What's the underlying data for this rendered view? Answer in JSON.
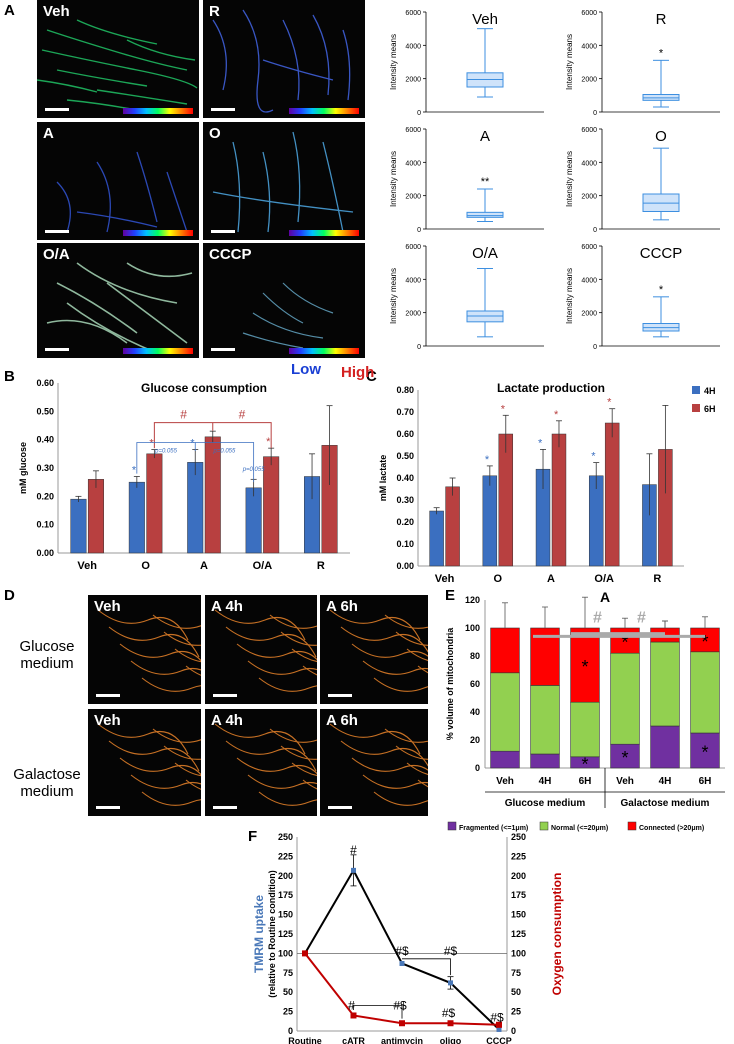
{
  "panels": {
    "A": "A",
    "B": "B",
    "C": "C",
    "D": "D",
    "E": "E",
    "F": "F"
  },
  "panelA": {
    "images": [
      "Veh",
      "R",
      "A",
      "O",
      "O/A",
      "CCCP"
    ],
    "scale_low": "Low",
    "scale_high": "High",
    "colors": {
      "low": "#1a3fd4",
      "high": "#d42020"
    }
  },
  "panelD": {
    "rows": [
      "Glucose medium",
      "Galactose medium"
    ],
    "images": [
      [
        "Veh",
        "A 4h",
        "A 6h"
      ],
      [
        "Veh",
        "A 4h",
        "A 6h"
      ]
    ]
  },
  "chart_data": [
    {
      "id": "A-box",
      "type": "box",
      "ylabel": "Intensity means",
      "yticks": [
        "0",
        "2000",
        "4000",
        "6000"
      ],
      "ylim": [
        0,
        6000
      ],
      "color": "#3d8fe0",
      "plots": [
        {
          "name": "Veh",
          "min": 900,
          "q1": 1500,
          "median": 1950,
          "q3": 2350,
          "max": 5000,
          "sig": ""
        },
        {
          "name": "R",
          "min": 300,
          "q1": 700,
          "median": 850,
          "q3": 1050,
          "max": 3100,
          "sig": "*"
        },
        {
          "name": "A",
          "min": 450,
          "q1": 700,
          "median": 800,
          "q3": 1000,
          "max": 2400,
          "sig": "**"
        },
        {
          "name": "O",
          "min": 550,
          "q1": 1050,
          "median": 1550,
          "q3": 2100,
          "max": 4850,
          "sig": ""
        },
        {
          "name": "O/A",
          "min": 550,
          "q1": 1450,
          "median": 1800,
          "q3": 2100,
          "max": 4650,
          "sig": ""
        },
        {
          "name": "CCCP",
          "min": 550,
          "q1": 900,
          "median": 1100,
          "q3": 1350,
          "max": 2950,
          "sig": "*"
        }
      ]
    },
    {
      "id": "B",
      "type": "bar",
      "title": "Glucose consumption",
      "ylabel": "mM glucose",
      "yticks": [
        "0.00",
        "0.10",
        "0.20",
        "0.30",
        "0.40",
        "0.50",
        "0.60"
      ],
      "ylim": [
        0,
        0.6
      ],
      "categories": [
        "Veh",
        "O",
        "A",
        "O/A",
        "R"
      ],
      "series": [
        {
          "color": "#3b6fc0",
          "values": [
            0.19,
            0.25,
            0.32,
            0.23,
            0.27
          ],
          "errors": [
            0.01,
            0.02,
            0.045,
            0.03,
            0.08
          ],
          "sig": [
            "",
            "*",
            "*",
            "",
            ""
          ]
        },
        {
          "color": "#b84040",
          "values": [
            0.26,
            0.35,
            0.41,
            0.34,
            0.38
          ],
          "errors": [
            0.03,
            0.015,
            0.02,
            0.03,
            0.14
          ],
          "sig": [
            "",
            "*",
            "",
            "*",
            ""
          ]
        }
      ],
      "annotations": {
        "hash": "#",
        "p1": "p=0.055",
        "p2": "p=0.055",
        "p3": "p=0.055"
      }
    },
    {
      "id": "C",
      "type": "bar",
      "title": "Lactate production",
      "ylabel": "mM lactate",
      "yticks": [
        "0.00",
        "0.10",
        "0.20",
        "0.30",
        "0.40",
        "0.50",
        "0.60",
        "0.70",
        "0.80"
      ],
      "ylim": [
        0,
        0.8
      ],
      "categories": [
        "Veh",
        "O",
        "A",
        "O/A",
        "R"
      ],
      "series": [
        {
          "name": "4H",
          "color": "#3b6fc0",
          "values": [
            0.25,
            0.41,
            0.44,
            0.41,
            0.37
          ],
          "errors": [
            0.015,
            0.045,
            0.09,
            0.06,
            0.14
          ],
          "sig": [
            "",
            "*",
            "*",
            "*",
            ""
          ]
        },
        {
          "name": "6H",
          "color": "#b84040",
          "values": [
            0.36,
            0.6,
            0.6,
            0.65,
            0.53
          ],
          "errors": [
            0.04,
            0.085,
            0.06,
            0.065,
            0.2
          ],
          "sig": [
            "",
            "*",
            "*",
            "*",
            ""
          ]
        }
      ]
    },
    {
      "id": "E",
      "type": "stacked-bar",
      "title": "A",
      "ylabel": "% volume of mitochondria",
      "yticks": [
        "0",
        "20",
        "40",
        "60",
        "80",
        "100",
        "120"
      ],
      "ylim": [
        0,
        120
      ],
      "categories": [
        "Veh",
        "4H",
        "6H",
        "Veh",
        "4H",
        "6H"
      ],
      "groups": [
        "Glucose medium",
        "Galactose medium"
      ],
      "series": [
        {
          "name": "Fragmented (<=1μm)",
          "color": "#7030a0",
          "values": [
            12,
            10,
            8,
            17,
            30,
            25
          ],
          "errors": [
            5,
            4,
            4,
            5,
            6,
            8
          ],
          "sig": [
            "",
            "",
            "*",
            "*",
            "",
            "*"
          ]
        },
        {
          "name": "Normal (<=20μm)",
          "color": "#92d050",
          "values": [
            56,
            49,
            39,
            65,
            60,
            58
          ],
          "errors": [
            14,
            14,
            20,
            14,
            15,
            15
          ],
          "sig": [
            "",
            "",
            "",
            "",
            "",
            ""
          ]
        },
        {
          "name": "Connected (>20μm)",
          "color": "#ff0000",
          "values": [
            32,
            41,
            53,
            18,
            10,
            17
          ],
          "errors": [
            18,
            15,
            22,
            7,
            5,
            8
          ],
          "sig": [
            "",
            "",
            "*",
            "*",
            "",
            "*"
          ]
        }
      ],
      "hash": "#"
    },
    {
      "id": "F",
      "type": "line",
      "ylabel_left": "TMRM uptake",
      "ylabel_left2": "(relative to Routine condition)",
      "ylabel_right": "Oxygen consumption",
      "yticks": [
        "0",
        "25",
        "50",
        "75",
        "100",
        "125",
        "150",
        "175",
        "200",
        "225",
        "250"
      ],
      "ylim": [
        0,
        250
      ],
      "categories": [
        "Routine",
        "cATR",
        "antimycin",
        "oligo",
        "CCCP"
      ],
      "series": [
        {
          "name": "TMRM uptake",
          "color": "#000000",
          "marker": "#4a78b8",
          "values": [
            100,
            207,
            87,
            62,
            2
          ],
          "errors": [
            0,
            20,
            0,
            8,
            0
          ]
        },
        {
          "name": "Oxygen consumption",
          "color": "#c00000",
          "values": [
            100,
            20,
            10,
            10,
            8
          ],
          "errors": [
            0,
            0,
            0,
            0,
            0
          ]
        }
      ],
      "annotations": [
        "#",
        "#$",
        "#$",
        "#",
        "#$",
        "#$",
        "#$"
      ]
    }
  ]
}
